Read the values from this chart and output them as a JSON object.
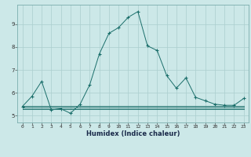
{
  "title": "",
  "xlabel": "Humidex (Indice chaleur)",
  "ylabel": "",
  "background_color": "#cce8e8",
  "grid_color": "#aacece",
  "line_color": "#1a6e6a",
  "x_values": [
    0,
    1,
    2,
    3,
    4,
    5,
    6,
    7,
    8,
    9,
    10,
    11,
    12,
    13,
    14,
    15,
    16,
    17,
    18,
    19,
    20,
    21,
    22,
    23
  ],
  "y_main": [
    5.4,
    5.85,
    6.5,
    5.25,
    5.3,
    5.1,
    5.5,
    6.35,
    7.7,
    8.6,
    8.85,
    9.3,
    9.55,
    8.05,
    7.85,
    6.75,
    6.2,
    6.65,
    5.8,
    5.65,
    5.5,
    5.45,
    5.45,
    5.75
  ],
  "y_flat1": [
    5.28,
    5.28,
    5.28,
    5.28,
    5.28,
    5.28,
    5.28,
    5.28,
    5.28,
    5.28,
    5.28,
    5.28,
    5.28,
    5.28,
    5.28,
    5.28,
    5.28,
    5.28,
    5.28,
    5.28,
    5.28,
    5.28,
    5.28,
    5.28
  ],
  "y_flat2": [
    5.35,
    5.35,
    5.35,
    5.35,
    5.35,
    5.35,
    5.35,
    5.35,
    5.35,
    5.35,
    5.35,
    5.35,
    5.35,
    5.35,
    5.35,
    5.35,
    5.35,
    5.35,
    5.35,
    5.35,
    5.35,
    5.35,
    5.35,
    5.35
  ],
  "y_flat3": [
    5.42,
    5.42,
    5.42,
    5.42,
    5.42,
    5.42,
    5.42,
    5.42,
    5.42,
    5.42,
    5.42,
    5.42,
    5.42,
    5.42,
    5.42,
    5.42,
    5.42,
    5.42,
    5.42,
    5.42,
    5.42,
    5.42,
    5.42,
    5.42
  ],
  "xlim": [
    -0.5,
    23.5
  ],
  "ylim": [
    4.7,
    9.85
  ],
  "yticks": [
    5,
    6,
    7,
    8,
    9
  ],
  "xticks": [
    0,
    1,
    2,
    3,
    4,
    5,
    6,
    7,
    8,
    9,
    10,
    11,
    12,
    13,
    14,
    15,
    16,
    17,
    18,
    19,
    20,
    21,
    22,
    23
  ],
  "xlabel_fontsize": 6.0,
  "tick_fontsize": 4.5
}
